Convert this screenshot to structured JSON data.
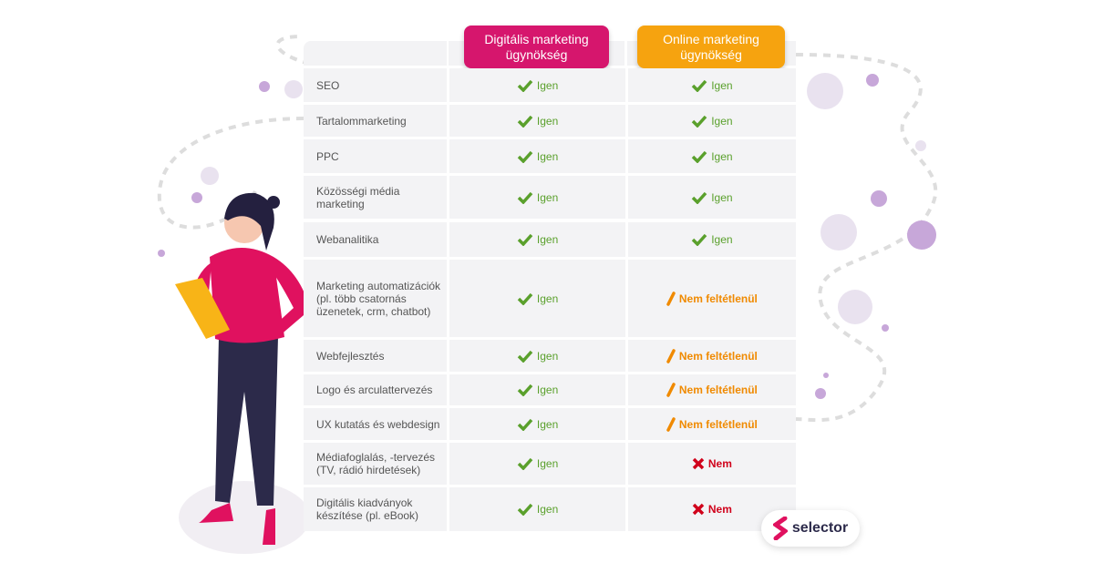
{
  "header": {
    "columns": [
      "Digitális marketing ügynökség",
      "Online marketing ügynökség"
    ]
  },
  "table": {
    "rows": [
      [
        "SEO",
        "Igen",
        "Igen"
      ],
      [
        "Tartalommarketing",
        "Igen",
        "Igen"
      ],
      [
        "PPC",
        "Igen",
        "Igen"
      ],
      [
        "Közösségi média marketing",
        "Igen",
        "Igen"
      ],
      [
        "Webanalitika",
        "Igen",
        "Igen"
      ],
      [
        "Marketing automatizációk (pl. több csatornás üzenetek, crm, chatbot)",
        "Igen",
        "Nem feltétlenül"
      ],
      [
        "Webfejlesztés",
        "Igen",
        "Nem feltétlenül"
      ],
      [
        "Logo és arculattervezés",
        "Igen",
        "Nem feltétlenül"
      ],
      [
        "UX kutatás és webdesign",
        "Igen",
        "Nem feltétlenül"
      ],
      [
        "Médiafoglalás, -tervezés (TV, rádió hirdetések)",
        "Igen",
        "Nem"
      ],
      [
        "Digitális kiadványok készítése (pl. eBook)",
        "Igen",
        "Nem"
      ]
    ]
  },
  "logo": {
    "text": "selector"
  }
}
